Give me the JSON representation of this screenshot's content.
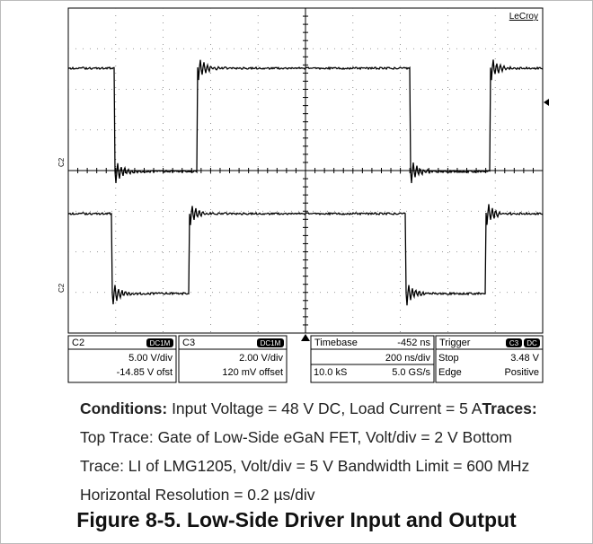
{
  "scope": {
    "brand": "LeCroy",
    "trace_labels": [
      "C2",
      "C2"
    ],
    "panels": [
      {
        "title": "C2",
        "badges": [
          "DC1M"
        ],
        "rows": [
          [
            "5.00 V/div"
          ],
          [
            "-14.85 V ofst"
          ]
        ]
      },
      {
        "title": "C3",
        "badges": [
          "DC1M"
        ],
        "rows": [
          [
            "2.00 V/div"
          ],
          [
            "120 mV offset"
          ]
        ]
      },
      {
        "title": "Timebase",
        "value": "-452 ns",
        "rows": [
          [
            "200 ns/div"
          ],
          [
            "10.0 kS",
            "5.0 GS/s"
          ]
        ]
      },
      {
        "title": "Trigger",
        "badges": [
          "C3",
          "DC"
        ],
        "rows": [
          [
            "Stop",
            "3.48 V"
          ],
          [
            "Edge",
            "Positive"
          ]
        ]
      }
    ]
  },
  "caption": {
    "conditions_label": "Conditions:",
    "conditions_text": " Input Voltage = 48 V DC, Load Current = 5 A",
    "traces_label": "Traces:",
    "traces_text": " Top Trace: Gate of Low-Side eGaN FET, Volt/div = 2 V Bottom Trace: LI of LMG1205, Volt/div = 5 V Bandwidth Limit = 600 MHz Horizontal Resolution = 0.2 µs/div"
  },
  "figure_title": "Figure 8-5. Low-Side Driver Input and Output"
}
